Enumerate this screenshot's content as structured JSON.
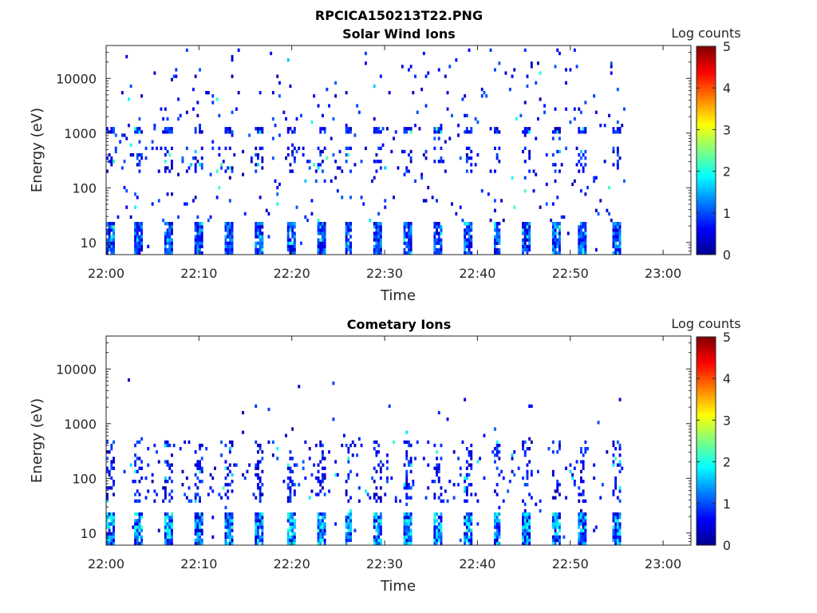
{
  "figure": {
    "title": "RPCICA150213T22.PNG"
  },
  "chart_data": [
    {
      "type": "heatmap",
      "title": "Solar Wind Ions",
      "xlabel": "Time",
      "ylabel": "Energy (eV)",
      "x_ticks": [
        "22:00",
        "22:10",
        "22:20",
        "22:30",
        "22:40",
        "22:50",
        "23:00"
      ],
      "y_ticks": [
        "10",
        "100",
        "1000",
        "10000"
      ],
      "y_scale": "log",
      "ylim": [
        6,
        40000
      ],
      "xlim_minutes": [
        0,
        63
      ],
      "data_end_minute": 56,
      "colorbar": {
        "label": "Log counts",
        "ticks": [
          "0",
          "1",
          "2",
          "3",
          "4",
          "5"
        ],
        "range": [
          0,
          5
        ],
        "colormap": "jet"
      },
      "grid": false,
      "features": {
        "low_energy_bursts_minutes": [
          0.3,
          3.4,
          6.6,
          9.8,
          13.2,
          16.4,
          19.8,
          23.0,
          26.0,
          29.2,
          32.4,
          35.6,
          38.8,
          42.0,
          45.2,
          48.4,
          51.2,
          54.8
        ],
        "high_energy_band_eV": [
          1200
        ],
        "mid_energy_band_eV": [
          200,
          600
        ]
      }
    },
    {
      "type": "heatmap",
      "title": "Cometary Ions",
      "xlabel": "Time",
      "ylabel": "Energy (eV)",
      "x_ticks": [
        "22:00",
        "22:10",
        "22:20",
        "22:30",
        "22:40",
        "22:50",
        "23:00"
      ],
      "y_ticks": [
        "10",
        "100",
        "1000",
        "10000"
      ],
      "y_scale": "log",
      "ylim": [
        6,
        40000
      ],
      "xlim_minutes": [
        0,
        63
      ],
      "data_end_minute": 56,
      "colorbar": {
        "label": "Log counts",
        "ticks": [
          "0",
          "1",
          "2",
          "3",
          "4",
          "5"
        ],
        "range": [
          0,
          5
        ],
        "colormap": "jet"
      },
      "grid": false,
      "features": {
        "low_energy_bursts_minutes": [
          0.3,
          3.4,
          6.6,
          9.8,
          13.2,
          16.4,
          19.8,
          23.0,
          26.0,
          29.2,
          32.4,
          35.6,
          38.8,
          42.0,
          45.2,
          48.4,
          51.2,
          54.8
        ],
        "mid_energy_band_eV": [
          40,
          500
        ]
      }
    }
  ]
}
